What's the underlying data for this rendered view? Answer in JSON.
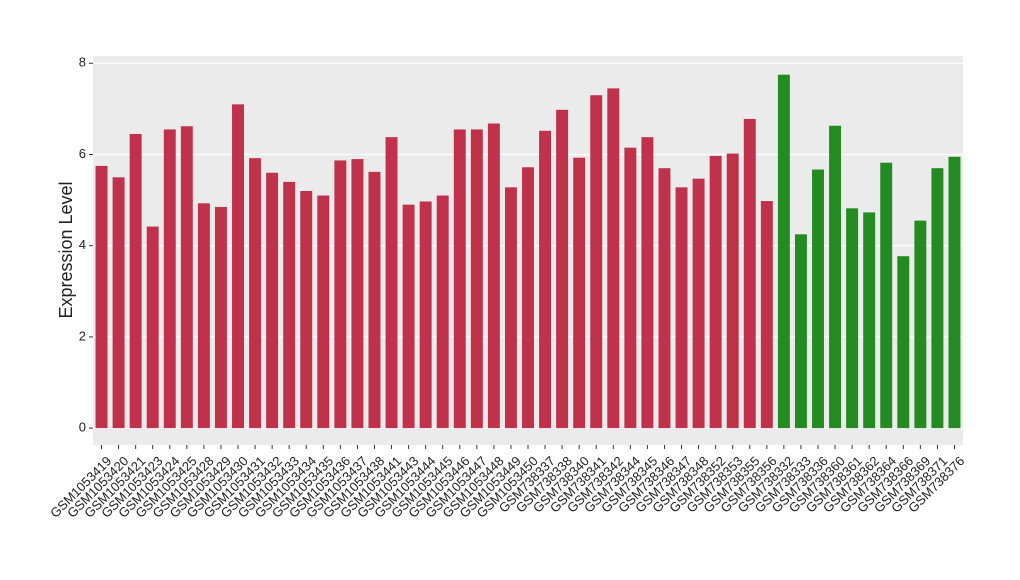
{
  "chart_data": {
    "type": "bar",
    "y_label": "Expression Level",
    "categories": [
      "GSM1053419",
      "GSM1053420",
      "GSM1053421",
      "GSM1053423",
      "GSM1053424",
      "GSM1053425",
      "GSM1053428",
      "GSM1053429",
      "GSM1053430",
      "GSM1053431",
      "GSM1053432",
      "GSM1053433",
      "GSM1053434",
      "GSM1053435",
      "GSM1053436",
      "GSM1053437",
      "GSM1053438",
      "GSM1053441",
      "GSM1053443",
      "GSM1053444",
      "GSM1053445",
      "GSM1053446",
      "GSM1053447",
      "GSM1053448",
      "GSM1053449",
      "GSM1053450",
      "GSM738337",
      "GSM738338",
      "GSM738340",
      "GSM738341",
      "GSM738342",
      "GSM738344",
      "GSM738345",
      "GSM738346",
      "GSM738347",
      "GSM738348",
      "GSM738352",
      "GSM738353",
      "GSM738355",
      "GSM738356",
      "GSM738332",
      "GSM738333",
      "GSM738336",
      "GSM738360",
      "GSM738361",
      "GSM738362",
      "GSM738364",
      "GSM738366",
      "GSM738369",
      "GSM738371",
      "GSM738376"
    ],
    "values": [
      5.75,
      5.5,
      6.45,
      4.42,
      6.55,
      6.62,
      4.93,
      4.85,
      7.1,
      5.92,
      5.6,
      5.4,
      5.2,
      5.1,
      5.87,
      5.9,
      5.62,
      6.38,
      4.9,
      4.97,
      5.1,
      6.55,
      6.55,
      6.68,
      5.28,
      5.72,
      6.52,
      6.98,
      5.93,
      7.3,
      7.45,
      6.15,
      6.38,
      5.7,
      5.28,
      5.47,
      5.97,
      6.02,
      6.78,
      4.98,
      7.75,
      4.25,
      5.67,
      6.63,
      4.82,
      4.73,
      5.82,
      3.77,
      4.55,
      5.7,
      5.95
    ],
    "colors": [
      "#c0314b",
      "#c0314b",
      "#c0314b",
      "#c0314b",
      "#c0314b",
      "#c0314b",
      "#c0314b",
      "#c0314b",
      "#c0314b",
      "#c0314b",
      "#c0314b",
      "#c0314b",
      "#c0314b",
      "#c0314b",
      "#c0314b",
      "#c0314b",
      "#c0314b",
      "#c0314b",
      "#c0314b",
      "#c0314b",
      "#c0314b",
      "#c0314b",
      "#c0314b",
      "#c0314b",
      "#c0314b",
      "#c0314b",
      "#c0314b",
      "#c0314b",
      "#c0314b",
      "#c0314b",
      "#c0314b",
      "#c0314b",
      "#c0314b",
      "#c0314b",
      "#c0314b",
      "#c0314b",
      "#c0314b",
      "#c0314b",
      "#c0314b",
      "#c0314b",
      "#238b22",
      "#238b22",
      "#238b22",
      "#238b22",
      "#238b22",
      "#238b22",
      "#238b22",
      "#238b22",
      "#238b22",
      "#238b22",
      "#238b22"
    ],
    "ylim": [
      -0.37,
      8.16
    ],
    "yticks": [
      0,
      2,
      4,
      6,
      8
    ],
    "grid": true
  }
}
